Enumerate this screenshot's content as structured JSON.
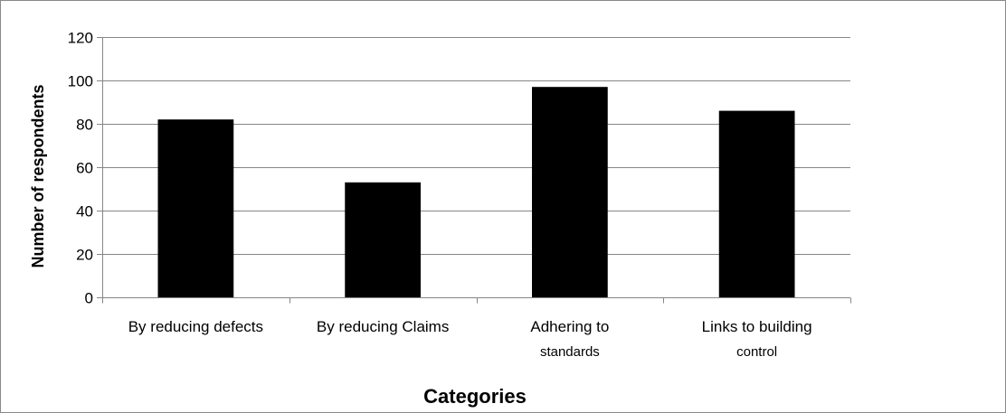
{
  "chart_data": {
    "type": "bar",
    "categories": [
      [
        "By reducing defects"
      ],
      [
        "By reducing Claims"
      ],
      [
        "Adhering to",
        "standards"
      ],
      [
        "Links to building",
        "control"
      ]
    ],
    "values": [
      82,
      53,
      97,
      86
    ],
    "title": "",
    "xlabel": "Categories",
    "ylabel": "Number of respondents",
    "ylim": [
      0,
      120
    ],
    "yticks": [
      0,
      20,
      40,
      60,
      80,
      100,
      120
    ],
    "grid": true,
    "legend": "none",
    "bar_color": "#000000",
    "grid_color": "#868686",
    "frame_color": "#888888"
  }
}
